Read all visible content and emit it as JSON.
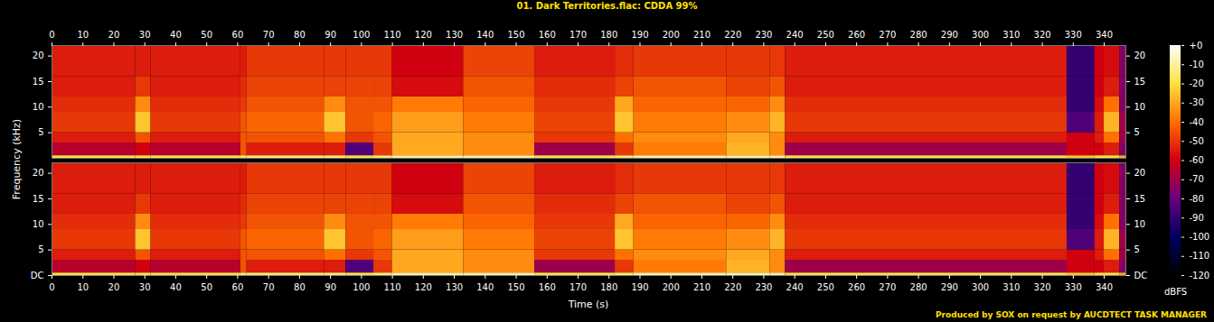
{
  "chart_data": {
    "type": "heatmap",
    "title": "01. Dark Territories.flac: CDDA 99%",
    "x_label": "Time (s)",
    "y_label": "Frequency (kHz)",
    "caption": "Produced by SOX on request by AUCDTECT TASK MANAGER",
    "xlim": [
      0,
      347
    ],
    "xticks": [
      0,
      10,
      20,
      30,
      40,
      50,
      60,
      70,
      80,
      90,
      100,
      110,
      120,
      130,
      140,
      150,
      160,
      170,
      180,
      190,
      200,
      210,
      220,
      230,
      240,
      250,
      260,
      270,
      280,
      290,
      300,
      310,
      320,
      330,
      340
    ],
    "ylim": [
      0,
      22.05
    ],
    "yticks": [
      {
        "value": 0,
        "label": "DC"
      },
      5,
      10,
      15,
      20
    ],
    "time_edges": [
      0,
      27,
      32,
      61,
      63,
      88,
      95,
      104,
      110,
      133,
      156,
      182,
      188,
      218,
      232,
      237,
      328,
      337,
      340,
      345,
      347
    ],
    "freq_edges": [
      0,
      0.5,
      3,
      5,
      9,
      12,
      16,
      22.05
    ],
    "colorbar": {
      "label": "dBFS",
      "range": [
        -120,
        0
      ],
      "ticks": [
        {
          "value": 0,
          "label": "+0"
        },
        -10,
        -20,
        -30,
        -40,
        -50,
        -60,
        -70,
        -80,
        -90,
        -100,
        -110,
        -120
      ]
    },
    "channels": [
      {
        "cells": [
          [
            -20,
            -65,
            -55,
            -50,
            -52,
            -55,
            -55
          ],
          [
            -20,
            -60,
            -45,
            -25,
            -35,
            -50,
            -55
          ],
          [
            -20,
            -65,
            -55,
            -50,
            -52,
            -55,
            -55
          ],
          [
            -15,
            -45,
            -45,
            -45,
            -50,
            -52,
            -55
          ],
          [
            -15,
            -55,
            -45,
            -42,
            -45,
            -48,
            -50
          ],
          [
            -15,
            -55,
            -40,
            -25,
            -35,
            -48,
            -50
          ],
          [
            -20,
            -85,
            -50,
            -45,
            -45,
            -48,
            -50
          ],
          [
            -15,
            -50,
            -45,
            -42,
            -45,
            -48,
            -50
          ],
          [
            -10,
            -30,
            -30,
            -32,
            -38,
            -58,
            -60
          ],
          [
            -10,
            -35,
            -35,
            -38,
            -42,
            -45,
            -48
          ],
          [
            -20,
            -70,
            -50,
            -48,
            -50,
            -52,
            -55
          ],
          [
            -15,
            -50,
            -40,
            -25,
            -30,
            -48,
            -52
          ],
          [
            -10,
            -38,
            -35,
            -38,
            -42,
            -45,
            -50
          ],
          [
            -10,
            -28,
            -30,
            -35,
            -42,
            -48,
            -50
          ],
          [
            -10,
            -35,
            -35,
            -28,
            -35,
            -45,
            -50
          ],
          [
            -20,
            -70,
            -55,
            -50,
            -52,
            -55,
            -55
          ],
          [
            -25,
            -60,
            -60,
            -85,
            -90,
            -90,
            -90
          ],
          [
            -20,
            -60,
            -55,
            -55,
            -58,
            -60,
            -60
          ],
          [
            -20,
            -55,
            -40,
            -28,
            -40,
            -55,
            -58
          ],
          [
            -30,
            -75,
            -70,
            -70,
            -75,
            -75,
            -75
          ]
        ]
      },
      {
        "cells": [
          [
            -20,
            -65,
            -55,
            -50,
            -52,
            -55,
            -55
          ],
          [
            -20,
            -60,
            -45,
            -25,
            -35,
            -50,
            -55
          ],
          [
            -20,
            -65,
            -55,
            -50,
            -52,
            -55,
            -55
          ],
          [
            -15,
            -45,
            -45,
            -45,
            -50,
            -52,
            -55
          ],
          [
            -15,
            -55,
            -45,
            -42,
            -45,
            -48,
            -50
          ],
          [
            -15,
            -55,
            -40,
            -25,
            -35,
            -48,
            -50
          ],
          [
            -20,
            -85,
            -50,
            -45,
            -45,
            -48,
            -50
          ],
          [
            -15,
            -50,
            -45,
            -42,
            -45,
            -48,
            -50
          ],
          [
            -10,
            -30,
            -30,
            -32,
            -38,
            -58,
            -60
          ],
          [
            -10,
            -35,
            -35,
            -38,
            -42,
            -45,
            -48
          ],
          [
            -20,
            -70,
            -50,
            -48,
            -50,
            -52,
            -55
          ],
          [
            -15,
            -50,
            -40,
            -25,
            -30,
            -48,
            -52
          ],
          [
            -10,
            -38,
            -35,
            -38,
            -42,
            -45,
            -50
          ],
          [
            -10,
            -28,
            -30,
            -35,
            -42,
            -48,
            -50
          ],
          [
            -10,
            -35,
            -35,
            -28,
            -35,
            -45,
            -50
          ],
          [
            -20,
            -70,
            -55,
            -50,
            -52,
            -55,
            -55
          ],
          [
            -25,
            -60,
            -60,
            -85,
            -90,
            -90,
            -90
          ],
          [
            -20,
            -60,
            -55,
            -55,
            -58,
            -60,
            -60
          ],
          [
            -20,
            -55,
            -40,
            -28,
            -40,
            -55,
            -58
          ],
          [
            -30,
            -75,
            -70,
            -70,
            -75,
            -75,
            -75
          ]
        ]
      }
    ]
  }
}
